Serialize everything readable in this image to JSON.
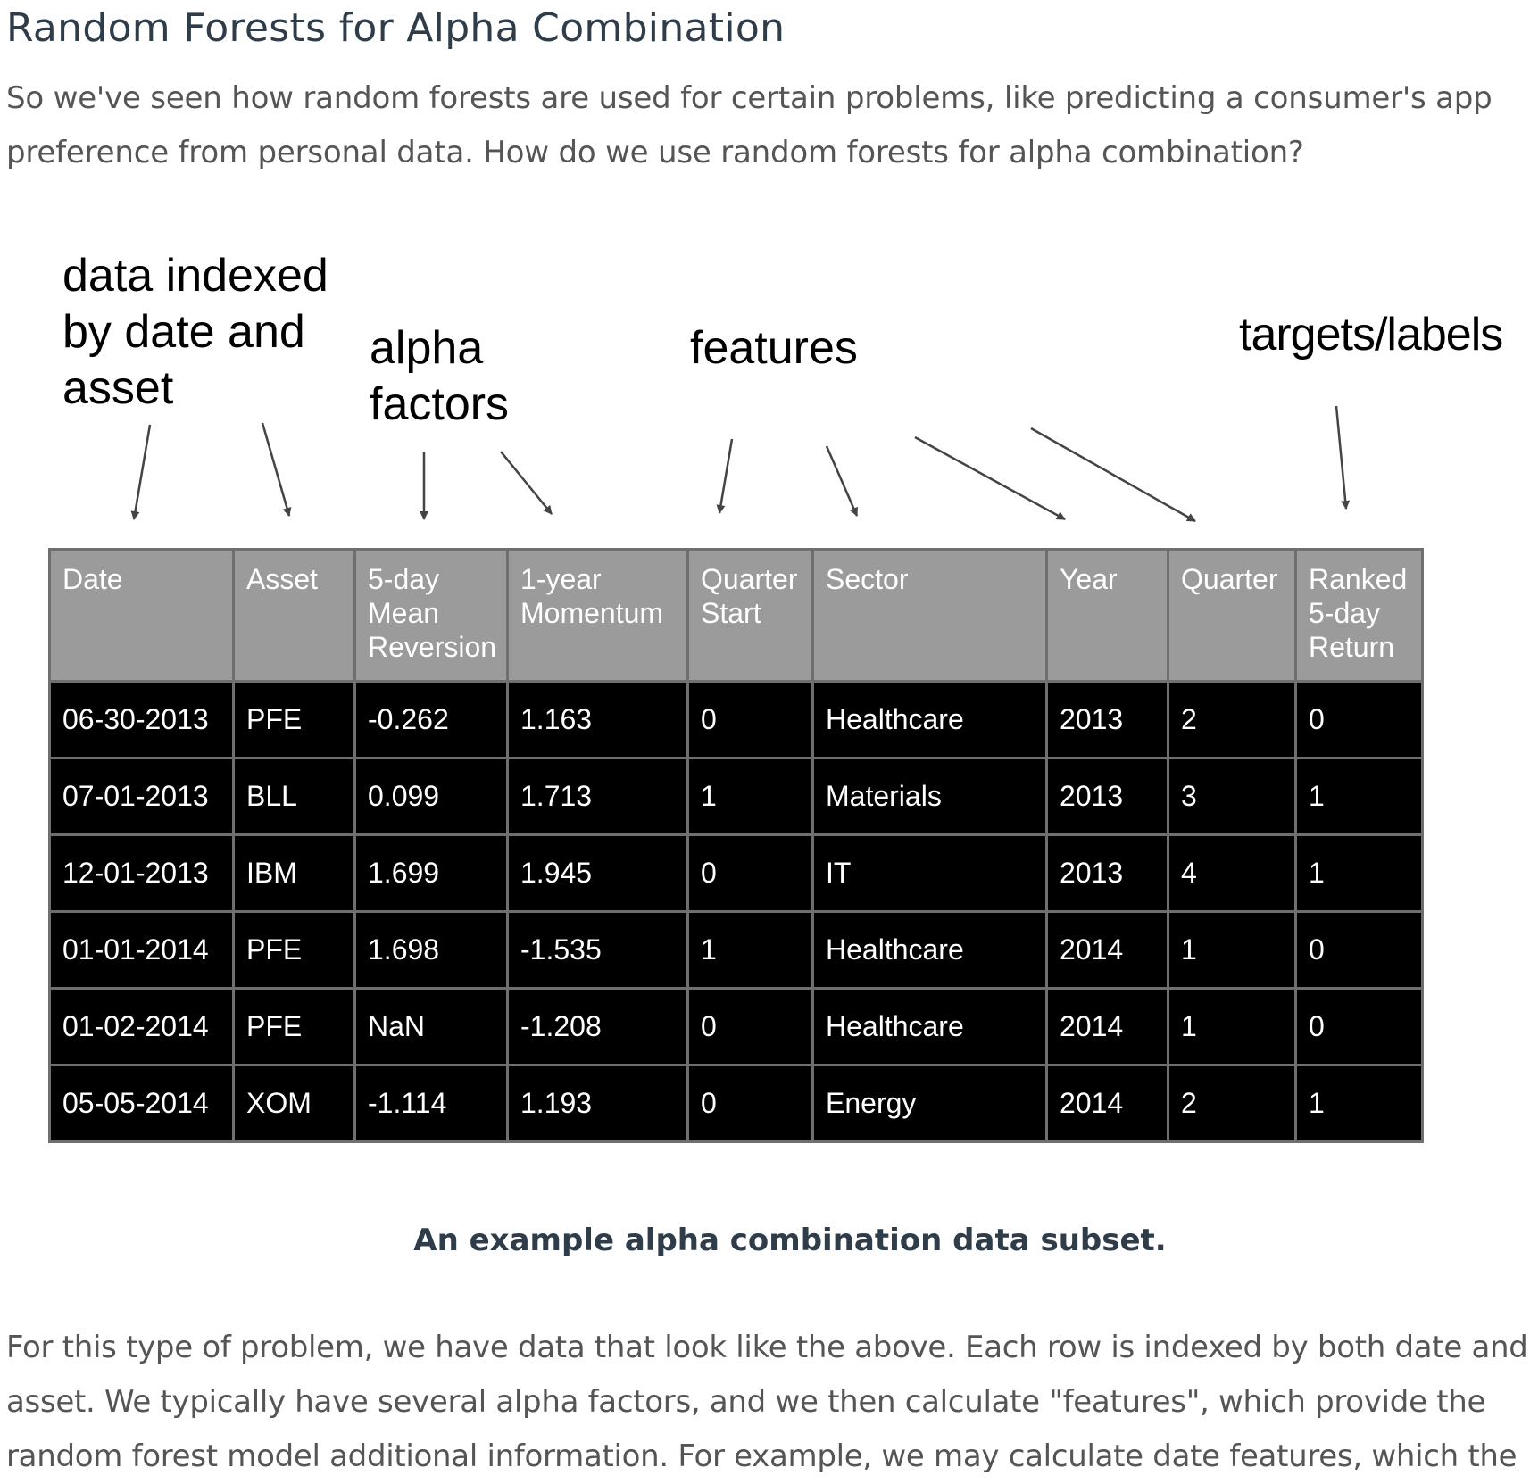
{
  "title": "Random Forests for Alpha Combination",
  "intro": "So we've seen how random forests are used for certain problems, like predicting a consumer's app preference from personal data. How do we use random forests for alpha combination?",
  "figure": {
    "annotations": {
      "index": "data indexed\nby date and\nasset",
      "alpha": "alpha\nfactors",
      "features": "features",
      "targets": "targets/labels"
    },
    "table": {
      "headers": [
        "Date",
        "Asset",
        "5-day\nMean\nReversion",
        "1-year\nMomentum",
        "Quarter\nStart",
        "Sector",
        "Year",
        "Quarter",
        "Ranked\n5-day\nReturn"
      ],
      "rows": [
        [
          "06-30-2013",
          "PFE",
          "-0.262",
          "1.163",
          "0",
          "Healthcare",
          "2013",
          "2",
          "0"
        ],
        [
          "07-01-2013",
          "BLL",
          "0.099",
          "1.713",
          "1",
          "Materials",
          "2013",
          "3",
          "1"
        ],
        [
          "12-01-2013",
          "IBM",
          "1.699",
          "1.945",
          "0",
          "IT",
          "2013",
          "4",
          "1"
        ],
        [
          "01-01-2014",
          "PFE",
          "1.698",
          "-1.535",
          "1",
          "Healthcare",
          "2014",
          "1",
          "0"
        ],
        [
          "01-02-2014",
          "PFE",
          "NaN",
          "-1.208",
          "0",
          "Healthcare",
          "2014",
          "1",
          "0"
        ],
        [
          "05-05-2014",
          "XOM",
          "-1.114",
          "1.193",
          "0",
          "Energy",
          "2014",
          "2",
          "1"
        ]
      ]
    },
    "caption": "An example alpha combination data subset."
  },
  "body": "For this type of problem, we have data that look like the above. Each row is indexed by both date and asset. We typically have several alpha factors, and we then calculate \"features\", which provide the random forest model additional information. For example, we may calculate date features, which the"
}
